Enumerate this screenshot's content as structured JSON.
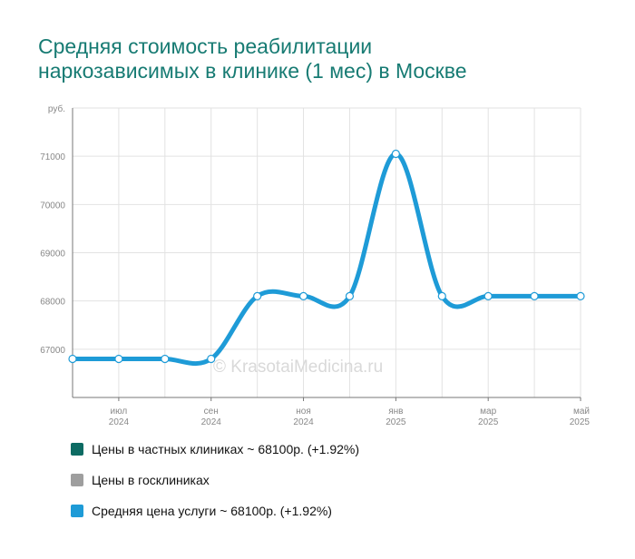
{
  "title_lines": [
    "Средняя стоимость реабилитации",
    "наркозависимых в клинике (1 мес) в Москве"
  ],
  "watermark": "© KrasotaiMedicina.ru",
  "colors": {
    "title": "#177b73",
    "private": "#0d6b63",
    "state": "#9e9e9e",
    "average": "#1e9bd7",
    "grid": "#e2e2e2",
    "axis_text": "#888888"
  },
  "legend": [
    {
      "label": "Цены в частных клиниках ~ 68100р. (+1.92%)",
      "color": "#0d6b63"
    },
    {
      "label": "Цены в госклиниках",
      "color": "#9e9e9e"
    },
    {
      "label": "Средняя цена услуги ~ 68100р. (+1.92%)",
      "color": "#1e9bd7"
    }
  ],
  "chart_data": {
    "type": "line",
    "y_unit_label": "руб.",
    "y_ticks": [
      67000,
      68000,
      69000,
      70000,
      71000
    ],
    "ylim": [
      66000,
      72000
    ],
    "x_ticks": [
      {
        "month": "июл",
        "year": "2024"
      },
      {
        "month": "сен",
        "year": "2024"
      },
      {
        "month": "ноя",
        "year": "2024"
      },
      {
        "month": "янв",
        "year": "2025"
      },
      {
        "month": "мар",
        "year": "2025"
      },
      {
        "month": "май",
        "year": "2025"
      }
    ],
    "x": [
      "2024-06",
      "2024-07",
      "2024-08",
      "2024-09",
      "2024-10",
      "2024-11",
      "2024-12",
      "2025-01",
      "2025-02",
      "2025-03",
      "2025-04",
      "2025-05"
    ],
    "series": [
      {
        "name": "Средняя цена услуги ~ 68100р. (+1.92%)",
        "color": "#1e9bd7",
        "values": [
          66800,
          66800,
          66800,
          66800,
          68100,
          68100,
          68100,
          71050,
          68100,
          68100,
          68100,
          68100
        ]
      }
    ]
  }
}
